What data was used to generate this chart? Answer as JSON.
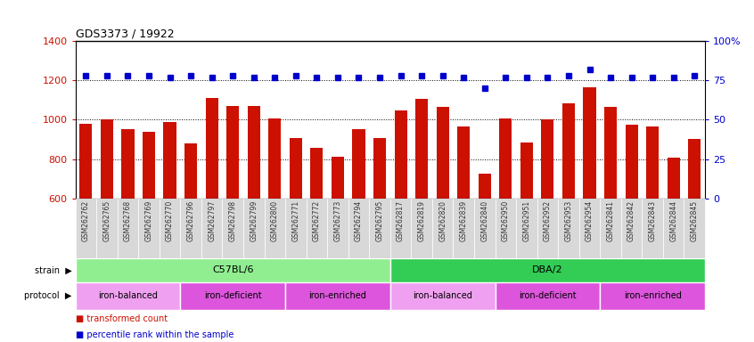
{
  "title": "GDS3373 / 19922",
  "samples": [
    "GSM262762",
    "GSM262765",
    "GSM262768",
    "GSM262769",
    "GSM262770",
    "GSM262796",
    "GSM262797",
    "GSM262798",
    "GSM262799",
    "GSM262800",
    "GSM262771",
    "GSM262772",
    "GSM262773",
    "GSM262794",
    "GSM262795",
    "GSM262817",
    "GSM262819",
    "GSM262820",
    "GSM262839",
    "GSM262840",
    "GSM262950",
    "GSM262951",
    "GSM262952",
    "GSM262953",
    "GSM262954",
    "GSM262841",
    "GSM262842",
    "GSM262843",
    "GSM262844",
    "GSM262845"
  ],
  "bar_values": [
    980,
    1000,
    950,
    940,
    990,
    880,
    1110,
    1070,
    1070,
    1005,
    905,
    855,
    810,
    950,
    905,
    1045,
    1105,
    1065,
    965,
    725,
    1005,
    885,
    1000,
    1085,
    1165,
    1065,
    975,
    965,
    805,
    900
  ],
  "percentile_values": [
    78,
    78,
    78,
    78,
    77,
    78,
    77,
    78,
    77,
    77,
    78,
    77,
    77,
    77,
    77,
    78,
    78,
    78,
    77,
    70,
    77,
    77,
    77,
    78,
    82,
    77,
    77,
    77,
    77,
    78
  ],
  "bar_color": "#cc1100",
  "percentile_color": "#0000cc",
  "ylim_left": [
    600,
    1400
  ],
  "ylim_right": [
    0,
    100
  ],
  "yticks_left": [
    600,
    800,
    1000,
    1200,
    1400
  ],
  "yticks_right": [
    0,
    25,
    50,
    75,
    100
  ],
  "ytick_labels_right": [
    "0",
    "25",
    "50",
    "75",
    "100%"
  ],
  "grid_values": [
    800,
    1000,
    1200
  ],
  "strain_groups": [
    {
      "label": "C57BL/6",
      "start": 0,
      "end": 15,
      "color": "#90ee90"
    },
    {
      "label": "DBA/2",
      "start": 15,
      "end": 30,
      "color": "#33cc55"
    }
  ],
  "protocol_groups": [
    {
      "label": "iron-balanced",
      "start": 0,
      "end": 5,
      "color": "#f0a0f0"
    },
    {
      "label": "iron-deficient",
      "start": 5,
      "end": 10,
      "color": "#dd55dd"
    },
    {
      "label": "iron-enriched",
      "start": 10,
      "end": 15,
      "color": "#dd55dd"
    },
    {
      "label": "iron-balanced",
      "start": 15,
      "end": 20,
      "color": "#f0a0f0"
    },
    {
      "label": "iron-deficient",
      "start": 20,
      "end": 25,
      "color": "#dd55dd"
    },
    {
      "label": "iron-enriched",
      "start": 25,
      "end": 30,
      "color": "#dd55dd"
    }
  ],
  "xtick_bg_color": "#d8d8d8",
  "strain_label": "strain",
  "protocol_label": "protocol"
}
